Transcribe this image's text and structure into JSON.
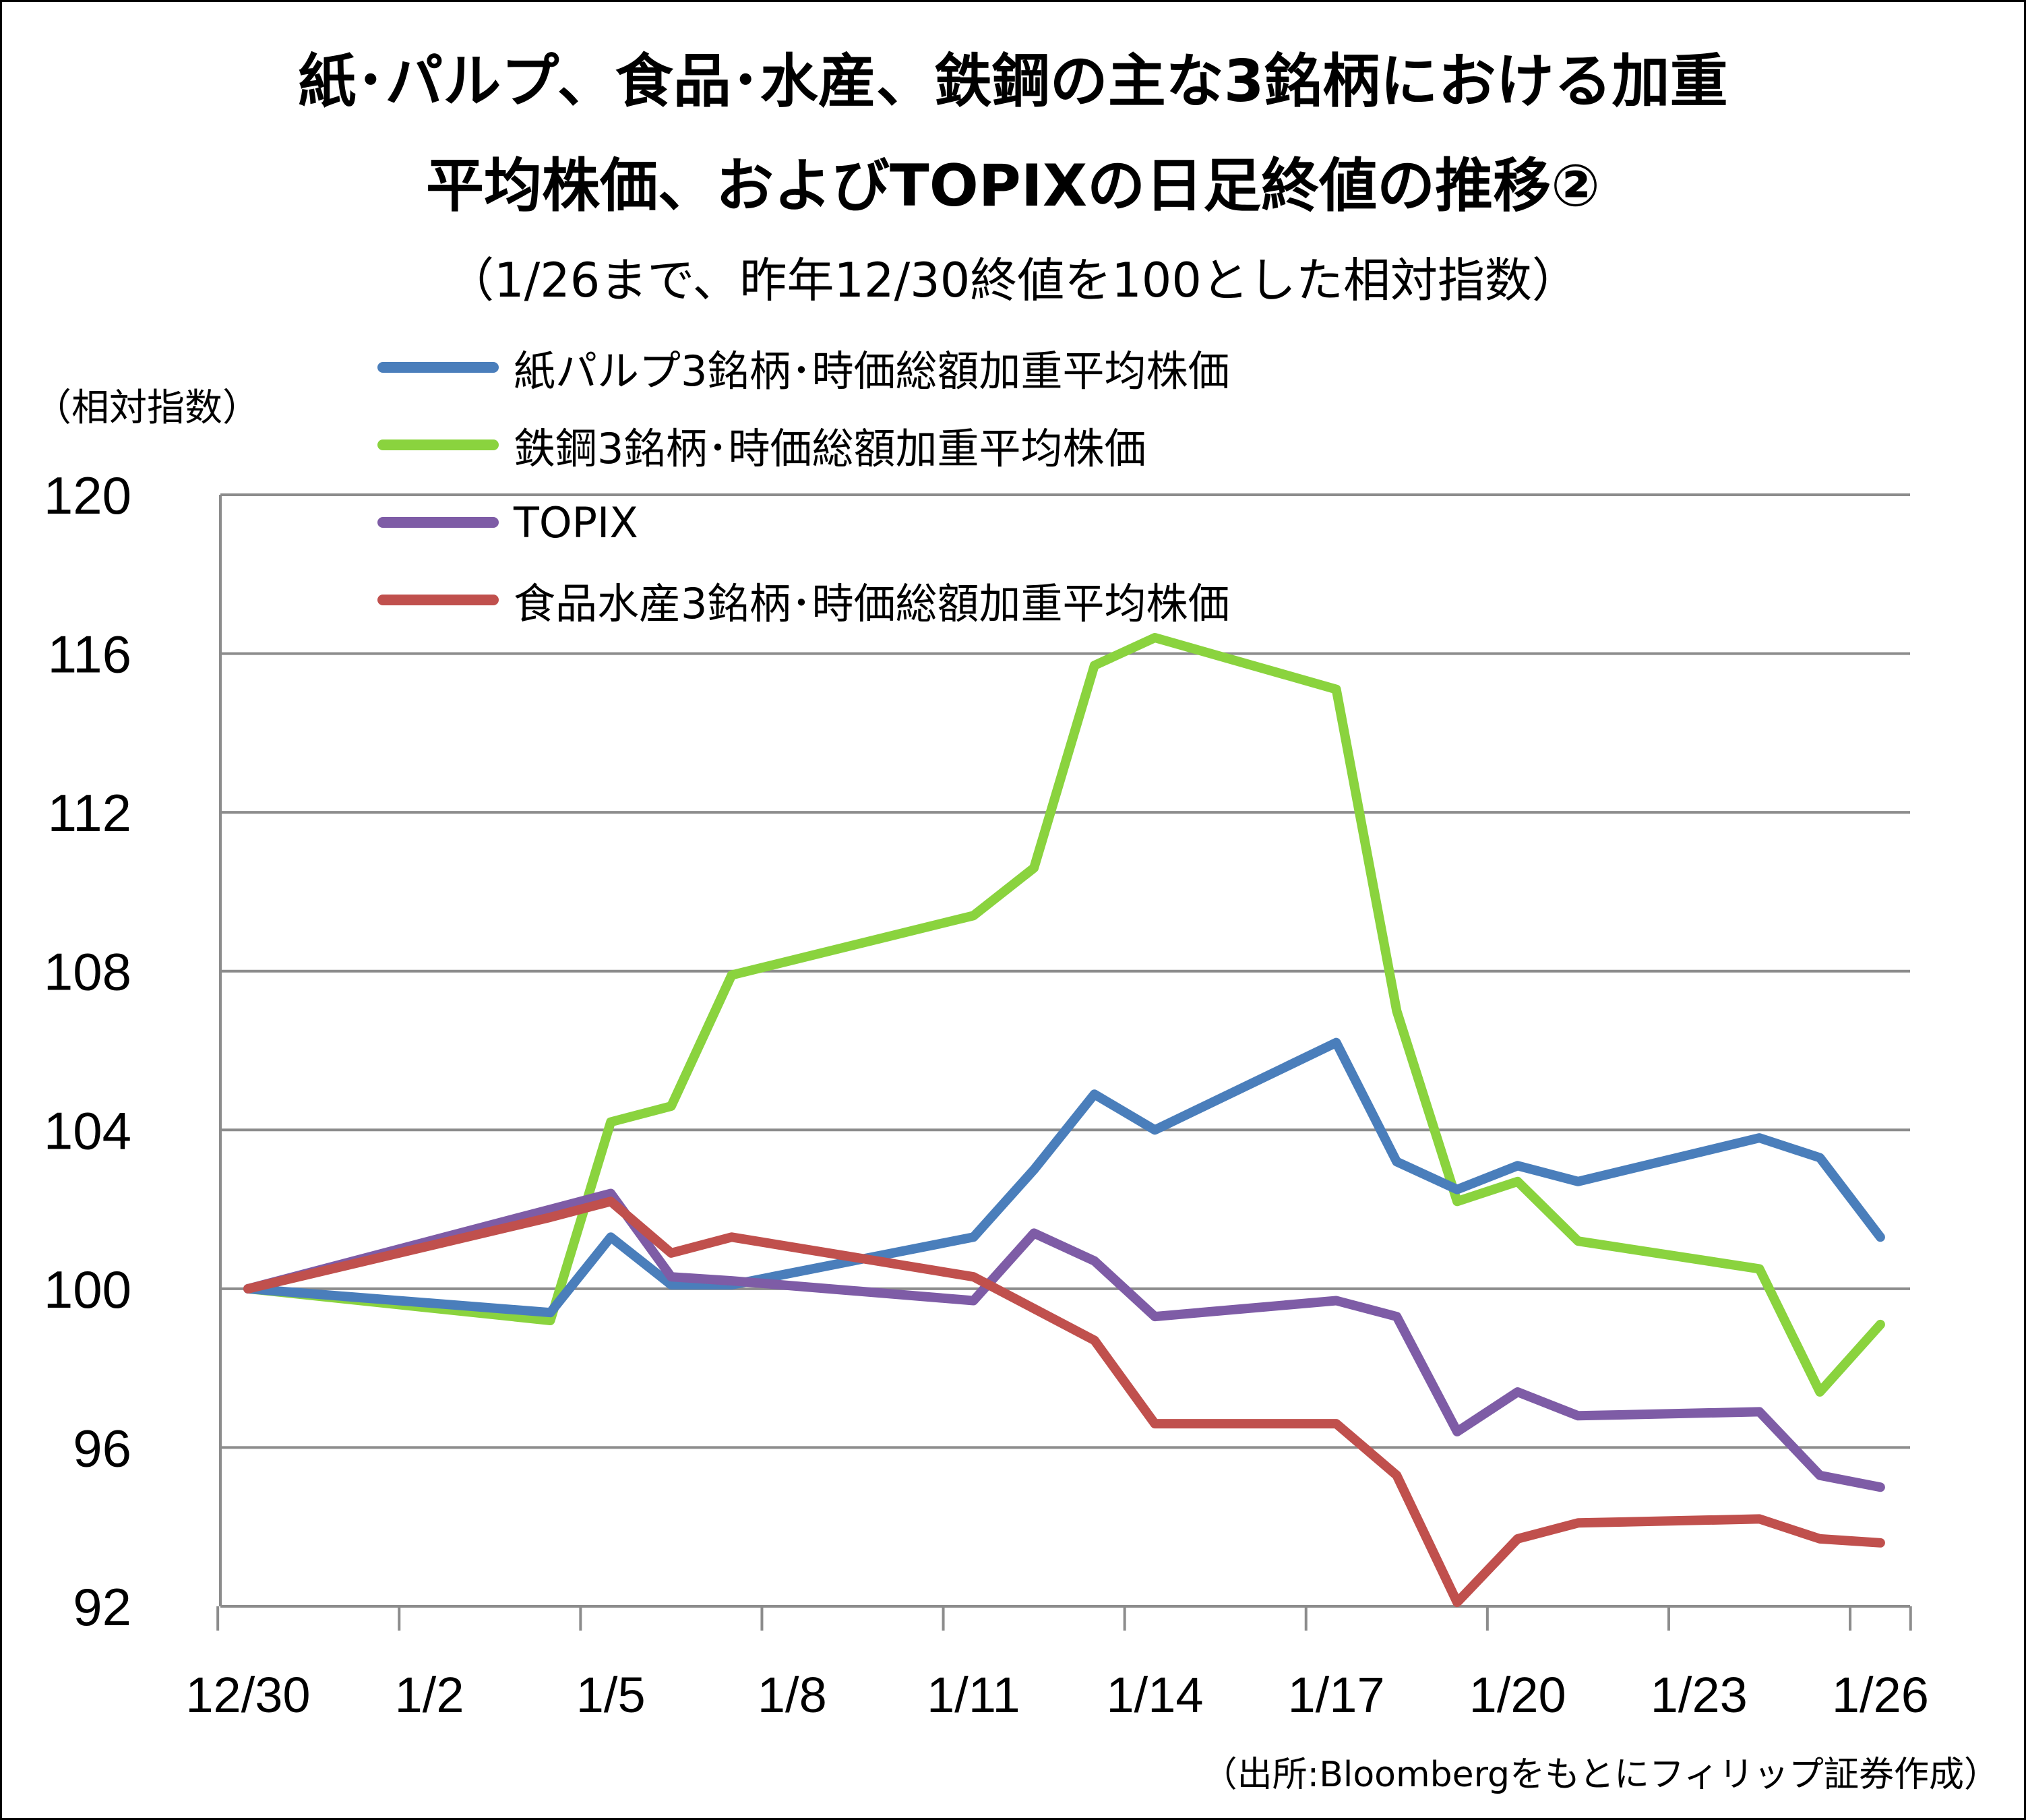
{
  "title_line1": "紙･パルプ、食品･水産、鉄鋼の主な3銘柄における加重",
  "title_line2": "平均株価、およびTOPIXの日足終値の推移②",
  "subtitle": "（1/26まで、昨年12/30終値を100とした相対指数）",
  "ylabel_unit": "（相対指数）",
  "source": "（出所:Bloombergをもとにフィリップ証券作成）",
  "chart_data": {
    "type": "line",
    "title": "紙･パルプ、食品･水産、鉄鋼の主な3銘柄における加重平均株価、およびTOPIXの日足終値の推移②",
    "ylabel": "（相対指数）",
    "ylim": [
      92,
      120
    ],
    "yticks": [
      "120",
      "116",
      "112",
      "108",
      "104",
      "100",
      "96",
      "92"
    ],
    "xticks": [
      "12/30",
      "1/2",
      "1/5",
      "1/8",
      "1/11",
      "1/14",
      "1/17",
      "1/20",
      "1/23",
      "1/26"
    ],
    "x": [
      "12/30",
      "1/4",
      "1/5",
      "1/6",
      "1/7",
      "1/11",
      "1/12",
      "1/13",
      "1/14",
      "1/17",
      "1/18",
      "1/19",
      "1/20",
      "1/21",
      "1/24",
      "1/25",
      "1/26"
    ],
    "grid": true,
    "legend_position": "top-left",
    "series": [
      {
        "name": "紙パルプ3銘柄･時価総額加重平均株価",
        "color": "#4a7ebb",
        "values": [
          100,
          99.4,
          101.3,
          100.1,
          100.1,
          101.3,
          103.0,
          104.9,
          104.0,
          106.2,
          103.2,
          102.5,
          103.1,
          102.7,
          103.8,
          103.3,
          101.3
        ]
      },
      {
        "name": "鉄鋼3銘柄･時価総額加重平均株価",
        "color": "#8ad33e",
        "values": [
          100,
          99.2,
          104.2,
          104.6,
          107.9,
          109.4,
          110.6,
          115.7,
          116.4,
          115.1,
          107.0,
          102.2,
          102.7,
          101.2,
          100.5,
          97.4,
          99.1
        ]
      },
      {
        "name": "TOPIX",
        "color": "#7e5ca6",
        "values": [
          100,
          102.0,
          102.4,
          100.3,
          100.2,
          99.7,
          101.4,
          100.7,
          99.3,
          99.7,
          99.3,
          96.4,
          97.4,
          96.8,
          96.9,
          95.3,
          95.0
        ]
      },
      {
        "name": "食品水産3銘柄･時価総額加重平均株価",
        "color": "#c0504d",
        "values": [
          100,
          101.8,
          102.2,
          100.9,
          101.3,
          100.3,
          99.5,
          98.7,
          96.6,
          96.6,
          95.3,
          92.1,
          93.7,
          94.1,
          94.2,
          93.7,
          93.6
        ]
      }
    ]
  }
}
